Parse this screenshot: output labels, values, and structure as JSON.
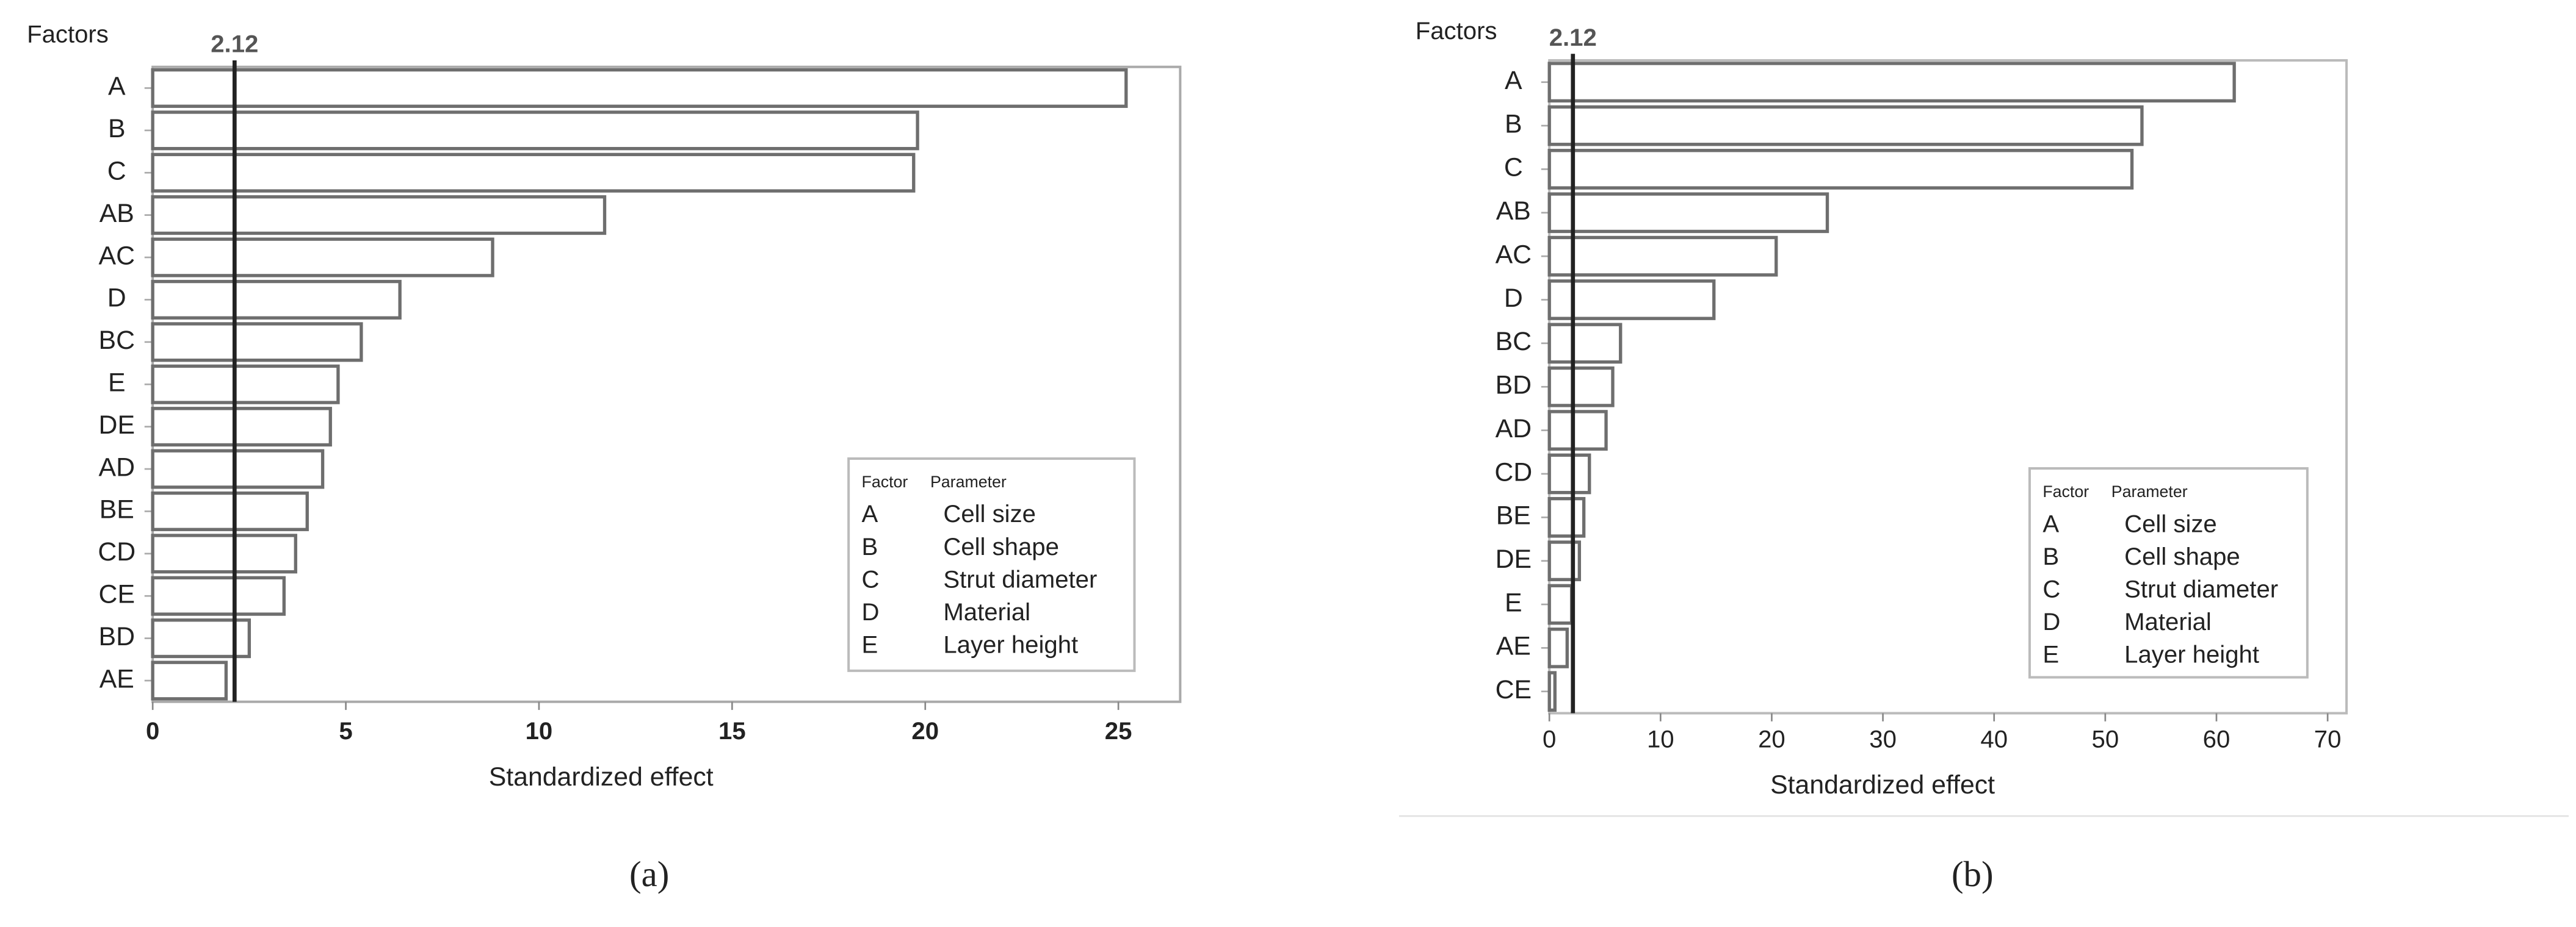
{
  "chart_data": [
    {
      "type": "bar",
      "orientation": "horizontal",
      "ylabel": "Factors",
      "xlabel": "Standardized effect",
      "caption": "(a)",
      "categories": [
        "A",
        "B",
        "C",
        "AB",
        "AC",
        "D",
        "BC",
        "E",
        "DE",
        "AD",
        "BE",
        "CD",
        "CE",
        "BD",
        "AE"
      ],
      "values": [
        25.2,
        19.8,
        19.7,
        11.7,
        8.8,
        6.4,
        5.4,
        4.8,
        4.6,
        4.4,
        4.0,
        3.7,
        3.4,
        2.5,
        1.9
      ],
      "color": "#ffffff",
      "edge_color": "#6e6e6e",
      "xlim": [
        0,
        26.6
      ],
      "xticks": [
        0,
        5,
        10,
        15,
        20,
        25
      ],
      "reference_line": 2.12,
      "legend_table": {
        "header": [
          "Factor",
          "Parameter"
        ],
        "rows": [
          [
            "A",
            "Cell size"
          ],
          [
            "B",
            "Cell shape"
          ],
          [
            "C",
            "Strut diameter"
          ],
          [
            "D",
            "Material"
          ],
          [
            "E",
            "Layer height"
          ]
        ]
      }
    },
    {
      "type": "bar",
      "orientation": "horizontal",
      "ylabel": "Factors",
      "xlabel": "Standardized effect",
      "caption": "(b)",
      "categories": [
        "A",
        "B",
        "C",
        "AB",
        "AC",
        "D",
        "BC",
        "BD",
        "AD",
        "CD",
        "BE",
        "DE",
        "E",
        "AE",
        "CE"
      ],
      "values": [
        61.6,
        53.3,
        52.4,
        25.0,
        20.4,
        14.8,
        6.4,
        5.7,
        5.1,
        3.6,
        3.1,
        2.7,
        2.0,
        1.6,
        0.5
      ],
      "color": "#ffffff",
      "edge_color": "#6e6e6e",
      "xlim": [
        0,
        71.7
      ],
      "xticks": [
        0,
        10,
        20,
        30,
        40,
        50,
        60,
        70
      ],
      "reference_line": 2.12,
      "legend_table": {
        "header": [
          "Factor",
          "Parameter"
        ],
        "rows": [
          [
            "A",
            "Cell size"
          ],
          [
            "B",
            "Cell shape"
          ],
          [
            "C",
            "Strut diameter"
          ],
          [
            "D",
            "Material"
          ],
          [
            "E",
            "Layer height"
          ]
        ]
      }
    }
  ]
}
